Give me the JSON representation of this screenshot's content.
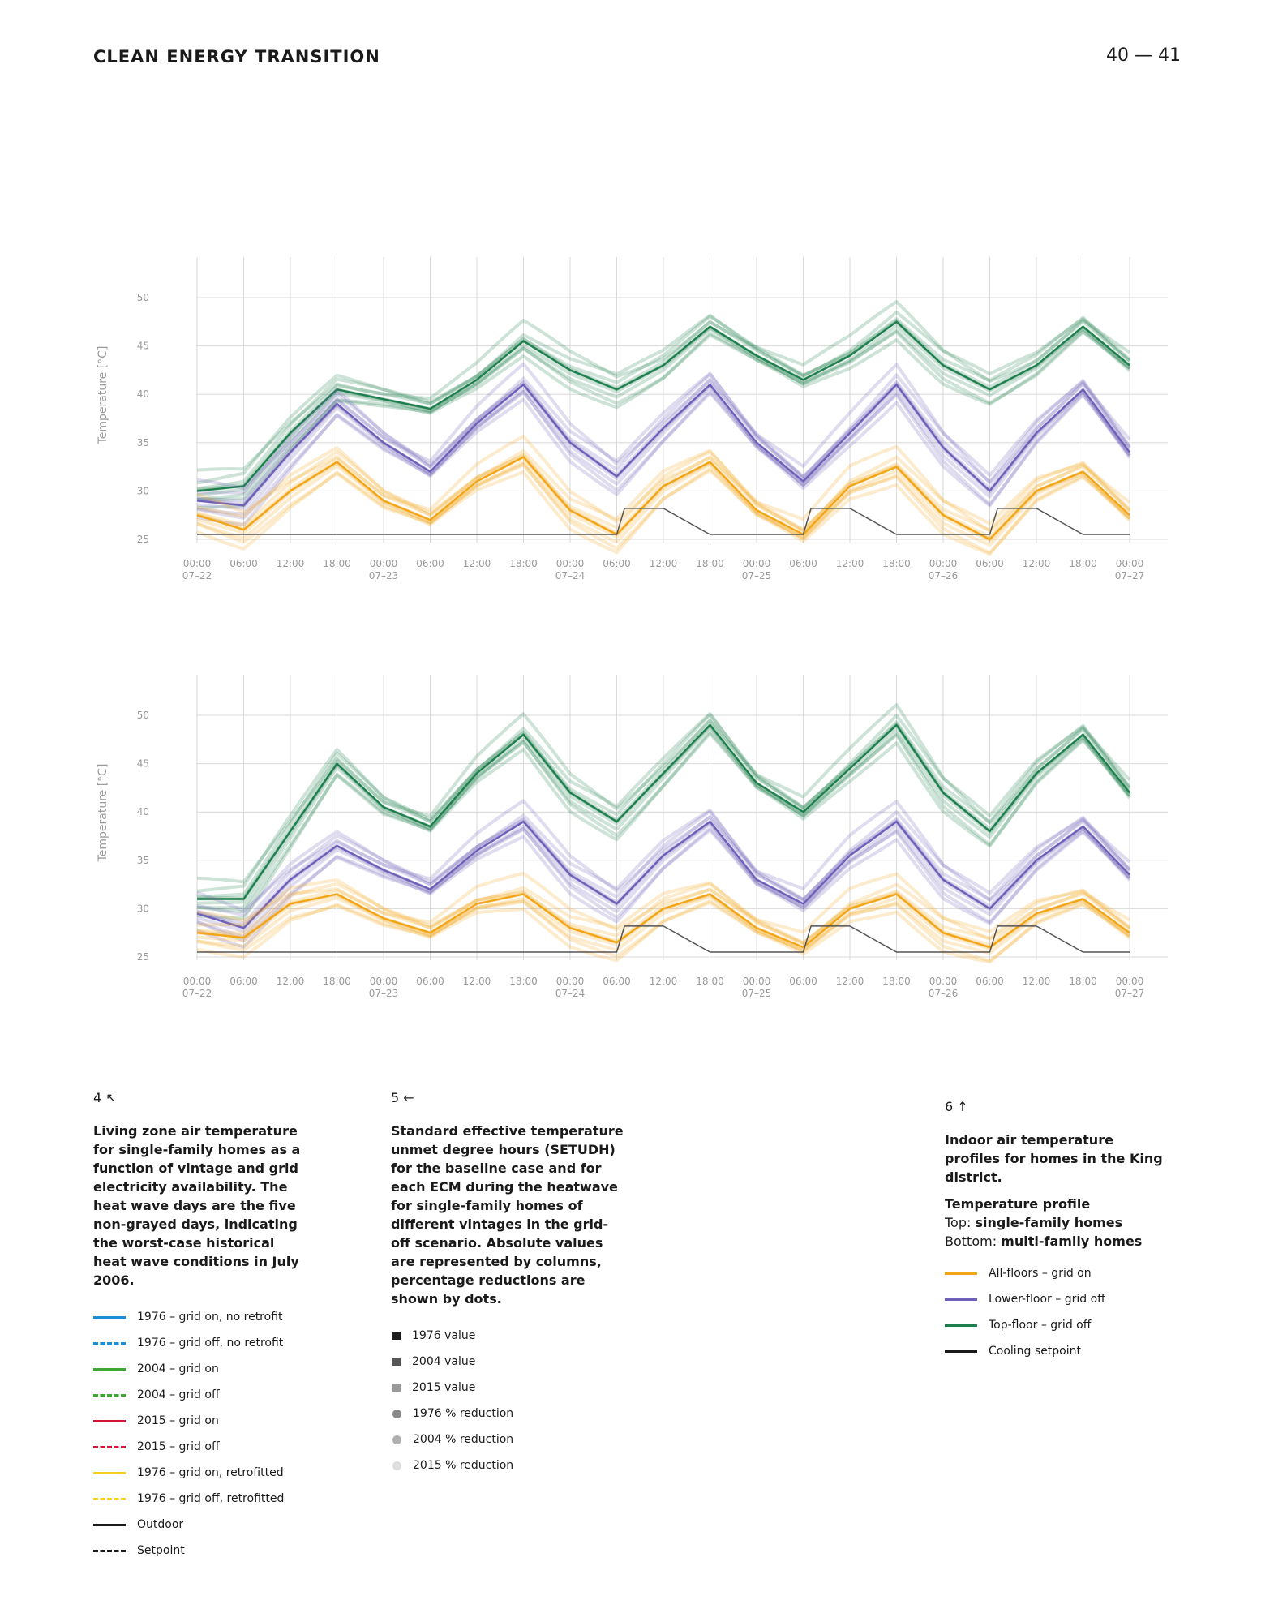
{
  "header": {
    "section_title": "CLEAN ENERGY TRANSITION",
    "page_numbers": "40 — 41"
  },
  "colors": {
    "all_floors": "#F2A516",
    "lower_floor": "#6E5FB8",
    "top_floor": "#1E7F4E",
    "setpoint": "#555555",
    "grid": "#d9d9d9"
  },
  "chart_data": [
    {
      "type": "line",
      "ylabel": "Temperature [°C]",
      "ylim": [
        25,
        50
      ],
      "yticks": [
        25,
        30,
        35,
        40,
        45,
        50
      ],
      "xlim_hours": [
        0,
        120
      ],
      "x_tick_labels": [
        [
          "00:00",
          "07–22"
        ],
        [
          "06:00",
          ""
        ],
        [
          "12:00",
          ""
        ],
        [
          "18:00",
          ""
        ],
        [
          "00:00",
          "07–23"
        ],
        [
          "06:00",
          ""
        ],
        [
          "12:00",
          ""
        ],
        [
          "18:00",
          ""
        ],
        [
          "00:00",
          "07–24"
        ],
        [
          "06:00",
          ""
        ],
        [
          "12:00",
          ""
        ],
        [
          "18:00",
          ""
        ],
        [
          "00:00",
          "07–25"
        ],
        [
          "06:00",
          ""
        ],
        [
          "12:00",
          ""
        ],
        [
          "18:00",
          ""
        ],
        [
          "00:00",
          "07–26"
        ],
        [
          "06:00",
          ""
        ],
        [
          "12:00",
          ""
        ],
        [
          "18:00",
          ""
        ],
        [
          "00:00",
          "07–27"
        ]
      ],
      "grid": true,
      "series": [
        {
          "name": "Top-floor – grid off",
          "color": "#1E7F4E",
          "x": [
            0,
            6,
            12,
            18,
            24,
            30,
            36,
            42,
            48,
            54,
            60,
            66,
            72,
            78,
            84,
            90,
            96,
            102,
            108,
            114,
            120
          ],
          "y": [
            30,
            30.5,
            36,
            40.5,
            39.5,
            38.5,
            41.5,
            45.5,
            42.5,
            40.5,
            43,
            47,
            44,
            41.5,
            44,
            47.5,
            43,
            40.5,
            43,
            47,
            43
          ]
        },
        {
          "name": "Lower-floor – grid off",
          "color": "#6E5FB8",
          "x": [
            0,
            6,
            12,
            18,
            24,
            30,
            36,
            42,
            48,
            54,
            60,
            66,
            72,
            78,
            84,
            90,
            96,
            102,
            108,
            114,
            120
          ],
          "y": [
            29,
            28.5,
            34,
            39,
            35,
            32,
            37,
            41,
            35,
            31.5,
            36.5,
            41,
            35,
            31,
            36,
            41,
            34.5,
            30,
            36,
            40.5,
            34
          ]
        },
        {
          "name": "All-floors – grid on",
          "color": "#F2A516",
          "x": [
            0,
            6,
            12,
            18,
            24,
            30,
            36,
            42,
            48,
            54,
            60,
            66,
            72,
            78,
            84,
            90,
            96,
            102,
            108,
            114,
            120
          ],
          "y": [
            27.5,
            26,
            30,
            33,
            29,
            27,
            31,
            33.5,
            28,
            25.5,
            30.5,
            33,
            28,
            25.5,
            30.5,
            32.5,
            27.5,
            25,
            30,
            32,
            27.5
          ]
        },
        {
          "name": "Cooling setpoint",
          "color": "#555555",
          "x": [
            0,
            54,
            55,
            60,
            66,
            78,
            79,
            84,
            90,
            102,
            103,
            108,
            114,
            120
          ],
          "y": [
            25.5,
            25.5,
            28.2,
            28.2,
            25.5,
            25.5,
            28.2,
            28.2,
            25.5,
            25.5,
            28.2,
            28.2,
            25.5,
            25.5
          ]
        }
      ]
    },
    {
      "type": "line",
      "ylabel": "Temperature [°C]",
      "ylim": [
        25,
        50
      ],
      "yticks": [
        25,
        30,
        35,
        40,
        45,
        50
      ],
      "xlim_hours": [
        0,
        120
      ],
      "x_tick_labels": [
        [
          "00:00",
          "07–22"
        ],
        [
          "06:00",
          ""
        ],
        [
          "12:00",
          ""
        ],
        [
          "18:00",
          ""
        ],
        [
          "00:00",
          "07–23"
        ],
        [
          "06:00",
          ""
        ],
        [
          "12:00",
          ""
        ],
        [
          "18:00",
          ""
        ],
        [
          "00:00",
          "07–24"
        ],
        [
          "06:00",
          ""
        ],
        [
          "12:00",
          ""
        ],
        [
          "18:00",
          ""
        ],
        [
          "00:00",
          "07–25"
        ],
        [
          "06:00",
          ""
        ],
        [
          "12:00",
          ""
        ],
        [
          "18:00",
          ""
        ],
        [
          "00:00",
          "07–26"
        ],
        [
          "06:00",
          ""
        ],
        [
          "12:00",
          ""
        ],
        [
          "18:00",
          ""
        ],
        [
          "00:00",
          "07–27"
        ]
      ],
      "grid": true,
      "series": [
        {
          "name": "Top-floor – grid off",
          "color": "#1E7F4E",
          "x": [
            0,
            6,
            12,
            18,
            24,
            30,
            36,
            42,
            48,
            54,
            60,
            66,
            72,
            78,
            84,
            90,
            96,
            102,
            108,
            114,
            120
          ],
          "y": [
            31,
            31,
            38,
            45,
            40.5,
            38.5,
            44,
            48,
            42,
            39,
            44,
            49,
            43,
            40,
            44.5,
            49,
            42,
            38,
            44,
            48,
            42
          ]
        },
        {
          "name": "Lower-floor – grid off",
          "color": "#6E5FB8",
          "x": [
            0,
            6,
            12,
            18,
            24,
            30,
            36,
            42,
            48,
            54,
            60,
            66,
            72,
            78,
            84,
            90,
            96,
            102,
            108,
            114,
            120
          ],
          "y": [
            29.5,
            28,
            33,
            36.5,
            34,
            32,
            36,
            39,
            33.5,
            30.5,
            35.5,
            39,
            33,
            30.5,
            35.5,
            39,
            33,
            30,
            35,
            38.5,
            33.5
          ]
        },
        {
          "name": "All-floors – grid on",
          "color": "#F2A516",
          "x": [
            0,
            6,
            12,
            18,
            24,
            30,
            36,
            42,
            48,
            54,
            60,
            66,
            72,
            78,
            84,
            90,
            96,
            102,
            108,
            114,
            120
          ],
          "y": [
            27.5,
            27,
            30.5,
            31.5,
            29,
            27.5,
            30.5,
            31.5,
            28,
            26.5,
            30,
            31.5,
            28,
            26,
            30,
            31.5,
            27.5,
            26,
            29.5,
            31,
            27.5
          ]
        },
        {
          "name": "Cooling setpoint",
          "color": "#555555",
          "x": [
            0,
            54,
            55,
            60,
            66,
            78,
            79,
            84,
            90,
            102,
            103,
            108,
            114,
            120
          ],
          "y": [
            25.5,
            25.5,
            28.2,
            28.2,
            25.5,
            25.5,
            28.2,
            28.2,
            25.5,
            25.5,
            28.2,
            28.2,
            25.5,
            25.5
          ]
        }
      ]
    }
  ],
  "captions": {
    "c4": {
      "fig_num": "4 ↖",
      "text": "Living zone air temperature for single-family homes as a function of vintage and grid electricity availability. The heat wave days are the five non-grayed days, indicating the worst-case historical heat wave conditions in July 2006.",
      "legend": [
        {
          "label": "1976 – grid on, no retrofit",
          "color": "#1A8FD6",
          "style": "solid"
        },
        {
          "label": "1976 – grid off, no retrofit",
          "color": "#1A8FD6",
          "style": "dashed"
        },
        {
          "label": "2004 – grid on",
          "color": "#3FA535",
          "style": "solid"
        },
        {
          "label": "2004 – grid off",
          "color": "#3FA535",
          "style": "dashed"
        },
        {
          "label": "2015 – grid on",
          "color": "#D4123A",
          "style": "solid"
        },
        {
          "label": "2015 – grid off",
          "color": "#D4123A",
          "style": "dashed"
        },
        {
          "label": "1976 – grid on, retrofitted",
          "color": "#F2D21B",
          "style": "solid"
        },
        {
          "label": "1976 – grid off, retrofitted",
          "color": "#F2D21B",
          "style": "dashed"
        },
        {
          "label": "Outdoor",
          "color": "#1a1a1a",
          "style": "solid"
        },
        {
          "label": "Setpoint",
          "color": "#1a1a1a",
          "style": "dashed"
        }
      ]
    },
    "c5": {
      "fig_num": "5 ←",
      "text": "Standard effective temperature unmet degree hours (SETUDH) for the baseline case and for each ECM during the heatwave for single-family homes of different vintages in the grid-off scenario. Absolute values are represented by columns, percentage reductions are shown by dots.",
      "legend": [
        {
          "label": "1976 value",
          "color": "#1a1a1a",
          "shape": "square"
        },
        {
          "label": "2004 value",
          "color": "#555555",
          "shape": "square"
        },
        {
          "label": "2015 value",
          "color": "#9a9a9a",
          "shape": "square"
        },
        {
          "label": "1976 % reduction",
          "color": "#888888",
          "shape": "dot"
        },
        {
          "label": "2004 % reduction",
          "color": "#b0b0b0",
          "shape": "dot"
        },
        {
          "label": "2015 % reduction",
          "color": "#dedede",
          "shape": "dot"
        }
      ]
    },
    "c6": {
      "fig_num": "6 ↑",
      "text": "Indoor air temperature profiles for homes in the King district.",
      "sub_title": "Temperature profile",
      "top_label": "Top: ",
      "top_value": "single-family homes",
      "bottom_label": "Bottom: ",
      "bottom_value": "multi-family homes",
      "legend": [
        {
          "label": "All-floors – grid on",
          "color": "#F2A516",
          "style": "solid"
        },
        {
          "label": "Lower-floor – grid off",
          "color": "#6E5FB8",
          "style": "solid"
        },
        {
          "label": "Top-floor – grid off",
          "color": "#1E7F4E",
          "style": "solid"
        },
        {
          "label": "Cooling setpoint",
          "color": "#1a1a1a",
          "style": "solid"
        }
      ]
    }
  }
}
